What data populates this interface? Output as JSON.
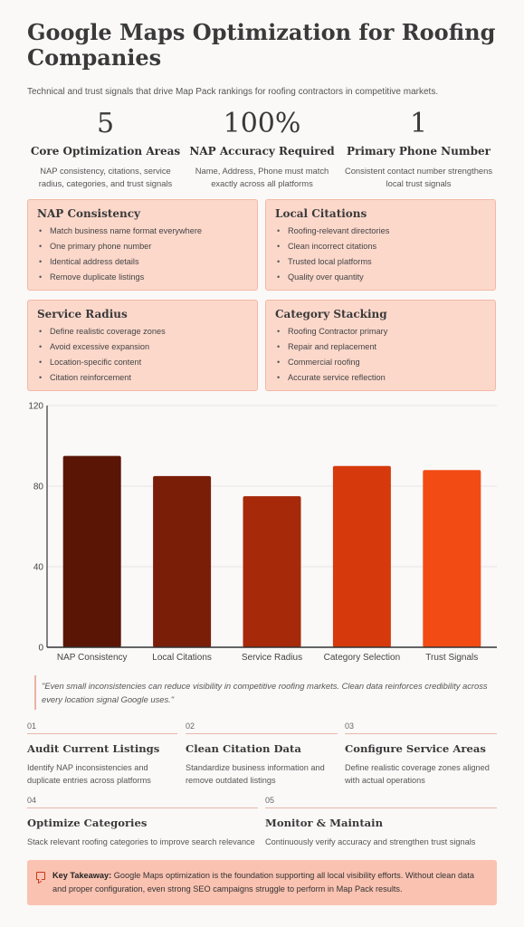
{
  "title": "Google Maps Optimization for Roofing Companies",
  "subtitle": "Technical and trust signals that drive Map Pack rankings for roofing contractors in competitive markets.",
  "stats": [
    {
      "value": "5",
      "label": "Core Optimization Areas",
      "desc": "NAP consistency, citations, service radius, categories, and trust signals"
    },
    {
      "value": "100%",
      "label": "NAP Accuracy Required",
      "desc": "Name, Address, Phone must match exactly across all platforms"
    },
    {
      "value": "1",
      "label": "Primary Phone Number",
      "desc": "Consistent contact number strengthens local trust signals"
    }
  ],
  "cards": [
    {
      "title": "NAP Consistency",
      "items": [
        "Match business name format everywhere",
        "One primary phone number",
        "Identical address details",
        "Remove duplicate listings"
      ]
    },
    {
      "title": "Local Citations",
      "items": [
        "Roofing-relevant directories",
        "Clean incorrect citations",
        "Trusted local platforms",
        "Quality over quantity"
      ]
    },
    {
      "title": "Service Radius",
      "items": [
        "Define realistic coverage zones",
        "Avoid excessive expansion",
        "Location-specific content",
        "Citation reinforcement"
      ]
    },
    {
      "title": "Category Stacking",
      "items": [
        "Roofing Contractor primary",
        "Repair and replacement",
        "Commercial roofing",
        "Accurate service reflection"
      ]
    }
  ],
  "chart_data": {
    "type": "bar",
    "categories": [
      "NAP Consistency",
      "Local Citations",
      "Service Radius",
      "Category Selection",
      "Trust Signals"
    ],
    "values": [
      95,
      85,
      75,
      90,
      88
    ],
    "colors": [
      "#5a1505",
      "#7a1e08",
      "#a6290a",
      "#d63a0c",
      "#f24b14"
    ],
    "ylim": [
      0,
      120
    ],
    "yticks": [
      0,
      40,
      80,
      120
    ],
    "grid": true
  },
  "quote": "\"Even small inconsistencies can reduce visibility in competitive roofing markets. Clean data reinforces credibility across every location signal Google uses.\"",
  "steps": [
    {
      "no": "01",
      "title": "Audit Current Listings",
      "desc": "Identify NAP inconsistencies and duplicate entries across platforms"
    },
    {
      "no": "02",
      "title": "Clean Citation Data",
      "desc": "Standardize business information and remove outdated listings"
    },
    {
      "no": "03",
      "title": "Configure Service Areas",
      "desc": "Define realistic coverage zones aligned with actual operations"
    },
    {
      "no": "04",
      "title": "Optimize Categories",
      "desc": "Stack relevant roofing categories to improve search relevance"
    },
    {
      "no": "05",
      "title": "Monitor & Maintain",
      "desc": "Continuously verify accuracy and strengthen trust signals"
    }
  ],
  "takeaway": {
    "icon": "comment-icon",
    "label": "Key Takeaway:",
    "text": " Google Maps optimization is the foundation supporting all local visibility efforts. Without clean data and proper configuration, even strong SEO campaigns struggle to perform in Map Pack results."
  }
}
